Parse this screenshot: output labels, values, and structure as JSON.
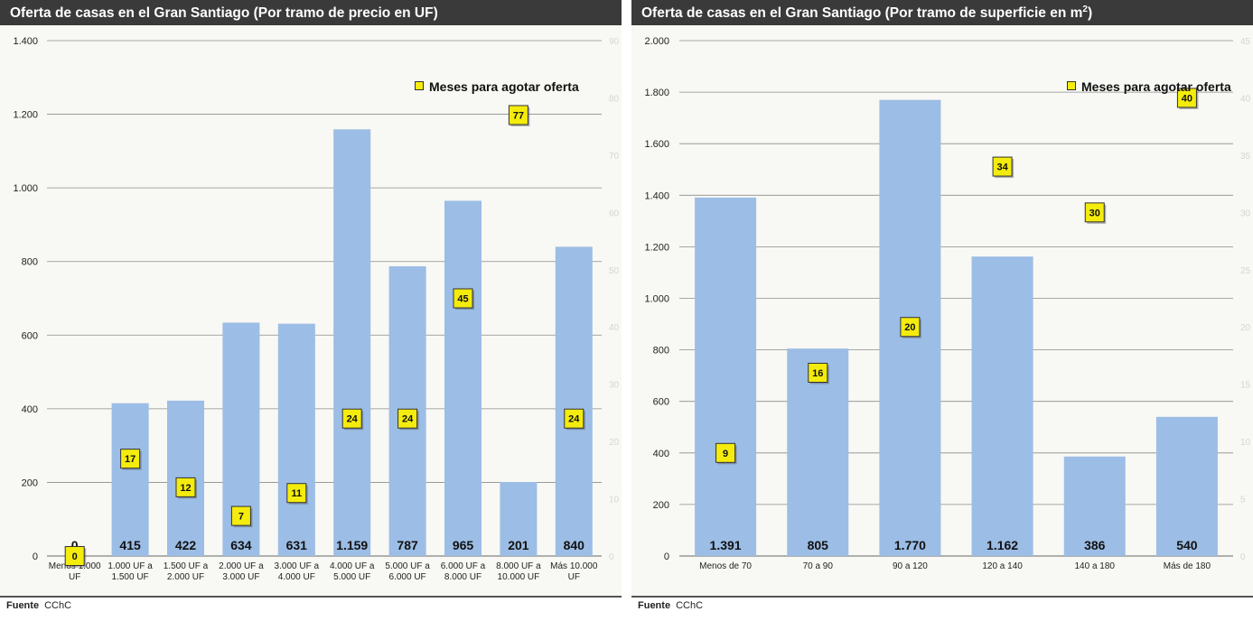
{
  "source_label": "Fuente",
  "source_value": "CChC",
  "colors": {
    "bar": "#9cbde5",
    "marker": "#f4ec0c",
    "grid": "#8c8c8c",
    "title_bg": "#3a3a3a"
  },
  "chart_data": [
    {
      "type": "bar",
      "title": "Oferta de casas en el Gran Santiago (Por tramo de precio en UF)",
      "categories": [
        [
          "Menos 1.000",
          "UF"
        ],
        [
          "1.000 UF a",
          "1.500 UF"
        ],
        [
          "1.500 UF a",
          "2.000 UF"
        ],
        [
          "2.000 UF a",
          "3.000 UF"
        ],
        [
          "3.000 UF a",
          "4.000 UF"
        ],
        [
          "4.000 UF a",
          "5.000 UF"
        ],
        [
          "5.000 UF a",
          "6.000 UF"
        ],
        [
          "6.000 UF a",
          "8.000 UF"
        ],
        [
          "8.000 UF a",
          "10.000 UF"
        ],
        [
          "Más 10.000",
          "UF"
        ]
      ],
      "values": [
        0,
        415,
        422,
        634,
        631,
        1159,
        787,
        965,
        201,
        840
      ],
      "value_labels": [
        "0",
        "415",
        "422",
        "634",
        "631",
        "1.159",
        "787",
        "965",
        "201",
        "840"
      ],
      "ylim": [
        0,
        1400
      ],
      "yticks": [
        0,
        200,
        400,
        600,
        800,
        1000,
        1200,
        1400
      ],
      "ytick_labels": [
        "0",
        "200",
        "400",
        "600",
        "800",
        "1.000",
        "1.200",
        "1.400"
      ],
      "y2lim": [
        0,
        90
      ],
      "y2ticks": [
        0,
        10,
        20,
        30,
        40,
        50,
        60,
        70,
        80,
        90
      ],
      "y2tick_labels": [
        "0",
        "10",
        "20",
        "30",
        "40",
        "50",
        "60",
        "70",
        "80",
        "90"
      ],
      "marker_series": {
        "name": "Meses para agotar oferta",
        "values": [
          0,
          17,
          12,
          7,
          11,
          24,
          24,
          45,
          77,
          24
        ],
        "labels": [
          "0",
          "17",
          "12",
          "7",
          "11",
          "24",
          "24",
          "45",
          "77",
          "24"
        ]
      },
      "legend": "top-right",
      "grid": true
    },
    {
      "type": "bar",
      "title_main": "Oferta de casas en el Gran Santiago (Por tramo de superficie en m",
      "title_sup": "2",
      "title_end": ")",
      "categories": [
        [
          "Menos de 70"
        ],
        [
          "70 a 90"
        ],
        [
          "90 a 120"
        ],
        [
          "120 a 140"
        ],
        [
          "140 a 180"
        ],
        [
          "Más de 180"
        ]
      ],
      "values": [
        1391,
        805,
        1770,
        1162,
        386,
        540
      ],
      "value_labels": [
        "1.391",
        "805",
        "1.770",
        "1.162",
        "386",
        "540"
      ],
      "ylim": [
        0,
        2000
      ],
      "yticks": [
        0,
        200,
        400,
        600,
        800,
        1000,
        1200,
        1400,
        1600,
        1800,
        2000
      ],
      "ytick_labels": [
        "0",
        "200",
        "400",
        "600",
        "800",
        "1.000",
        "1.200",
        "1.400",
        "1.600",
        "1.800",
        "2.000"
      ],
      "y2lim": [
        0,
        45
      ],
      "y2ticks": [
        0,
        5,
        10,
        15,
        20,
        25,
        30,
        35,
        40,
        45
      ],
      "y2tick_labels": [
        "0",
        "5",
        "10",
        "15",
        "20",
        "25",
        "30",
        "35",
        "40",
        "45"
      ],
      "marker_series": {
        "name": "Meses para agotar oferta",
        "values": [
          9,
          16,
          20,
          34,
          30,
          40
        ],
        "labels": [
          "9",
          "16",
          "20",
          "34",
          "30",
          "40"
        ]
      },
      "legend": "top-right",
      "grid": true
    }
  ]
}
